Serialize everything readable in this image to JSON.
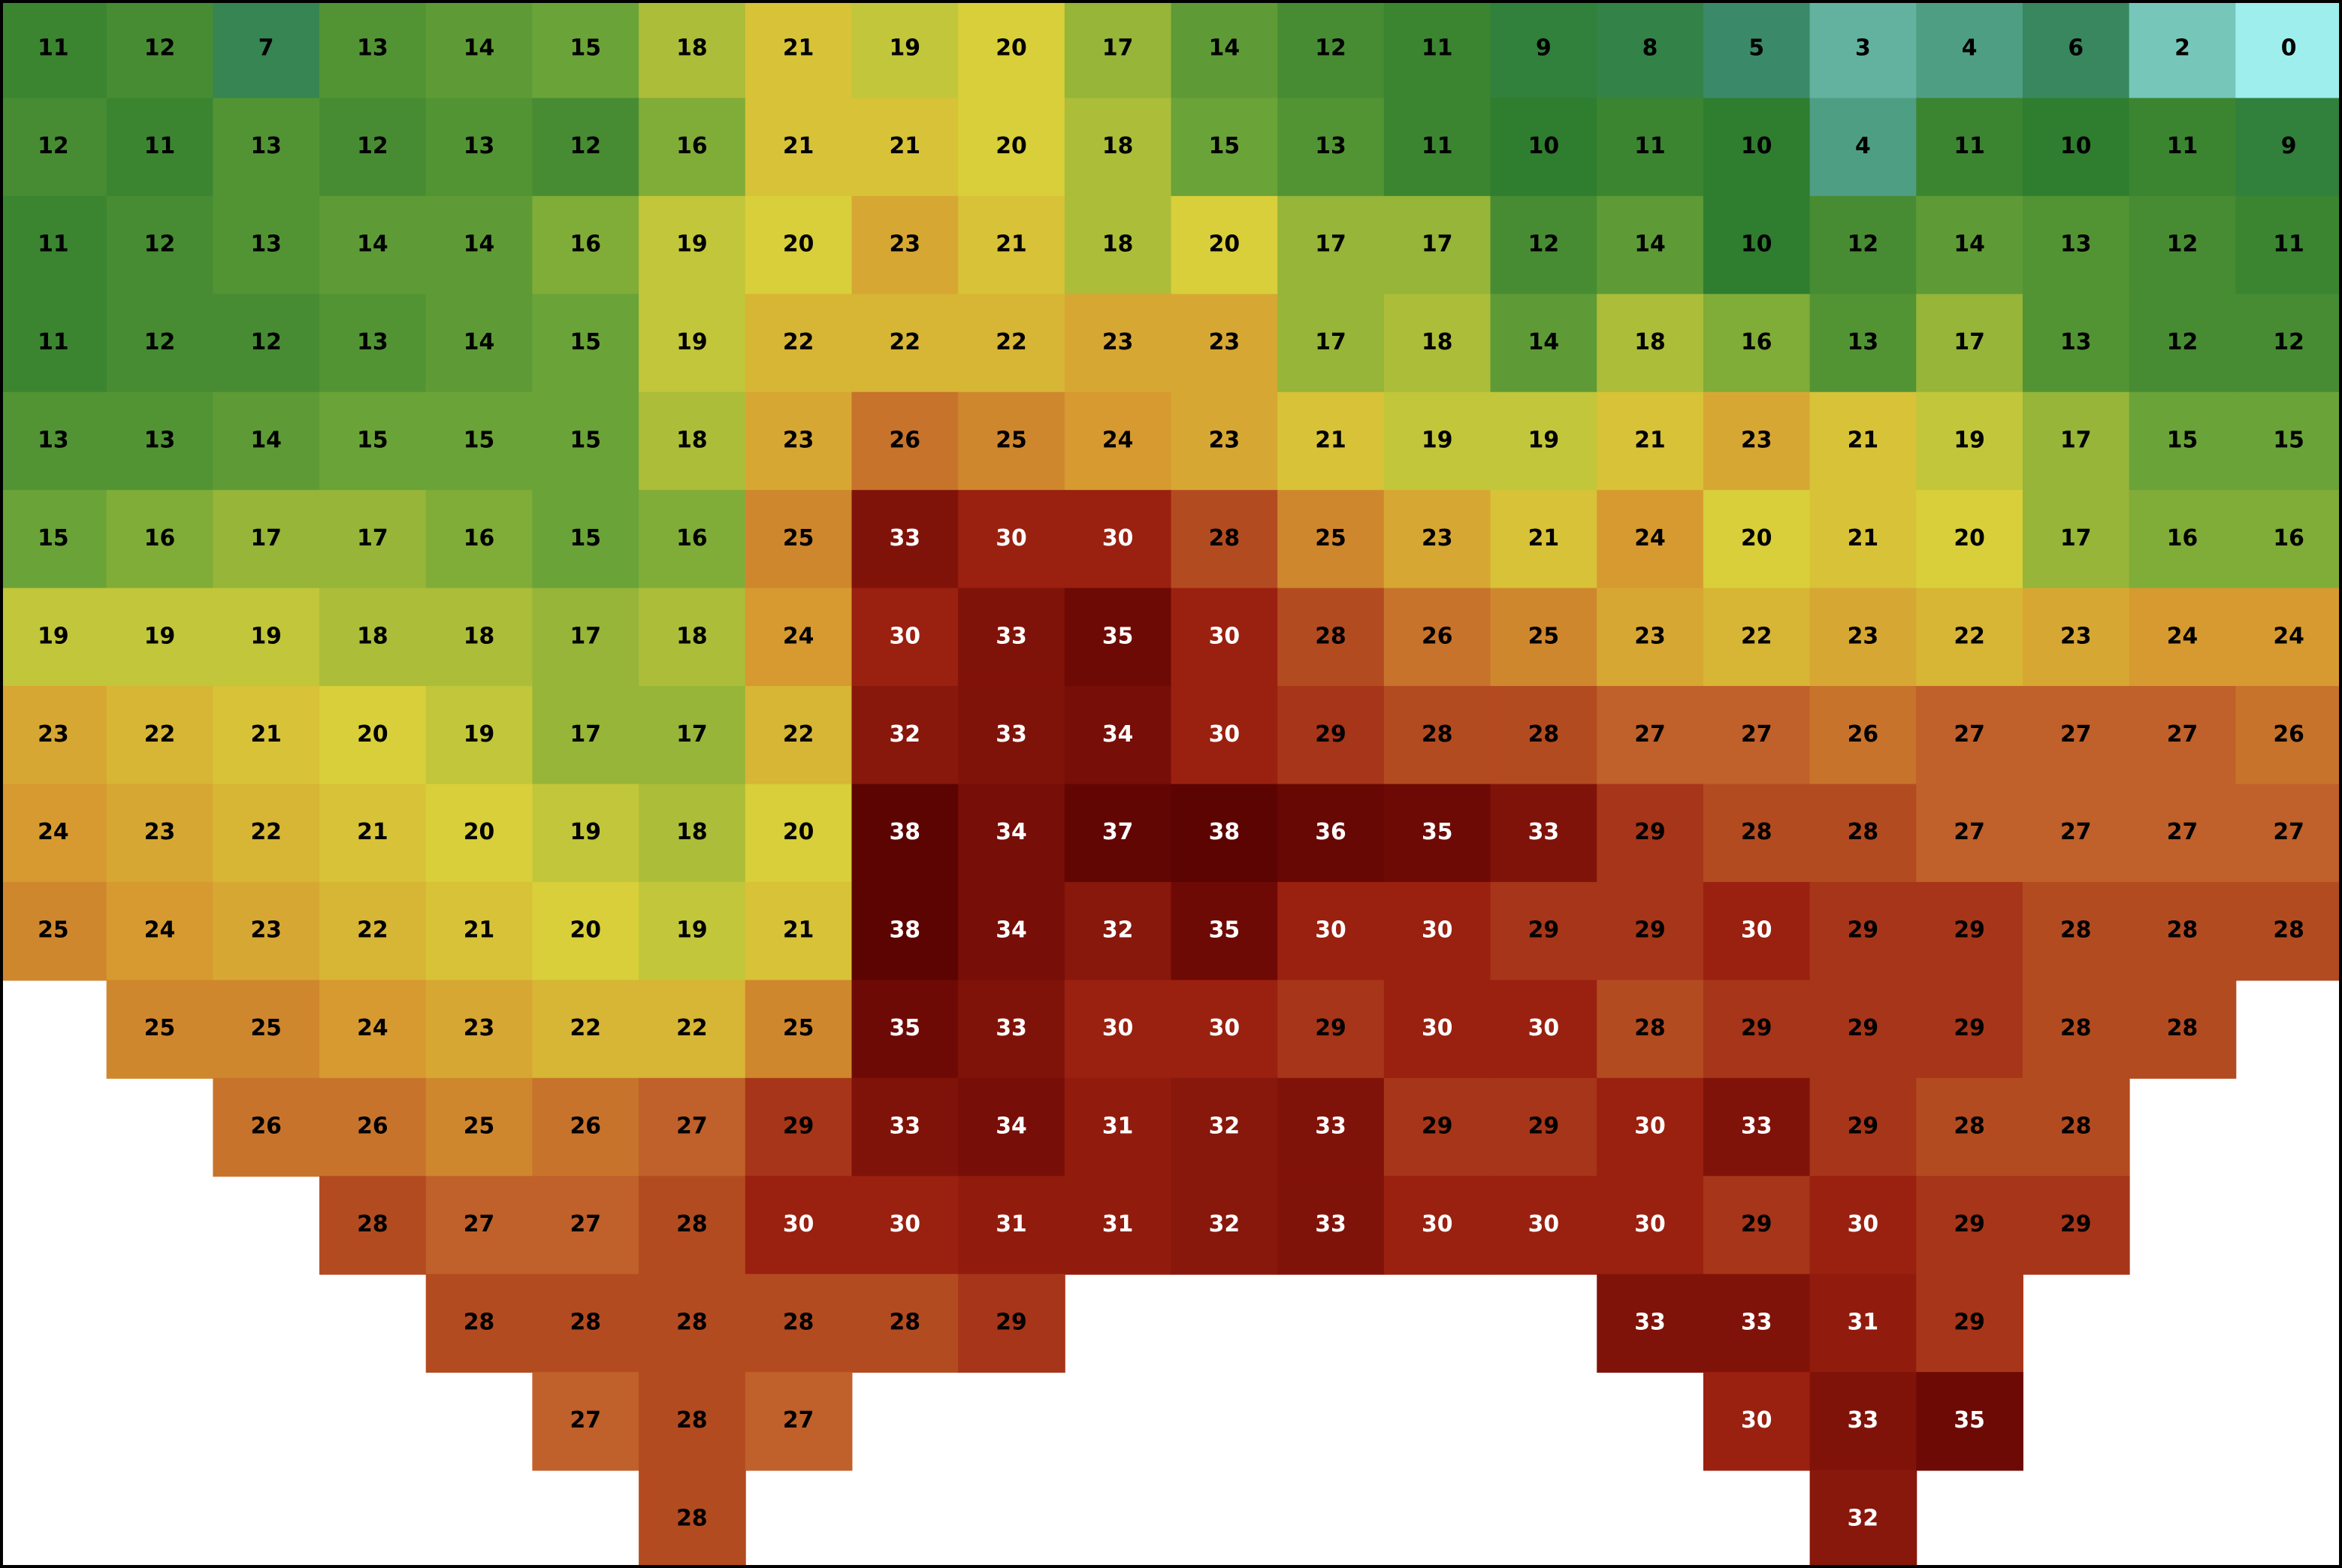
{
  "grid": {
    "rows": [
      [
        11,
        12,
        7,
        13,
        14,
        15,
        18,
        21,
        19,
        20,
        17,
        14,
        12,
        11,
        9,
        8,
        5,
        3,
        4,
        6,
        2,
        0
      ],
      [
        12,
        11,
        13,
        12,
        13,
        12,
        16,
        21,
        21,
        20,
        18,
        15,
        13,
        11,
        10,
        11,
        10,
        4,
        11,
        10,
        11,
        9
      ],
      [
        11,
        12,
        13,
        14,
        14,
        16,
        19,
        20,
        23,
        21,
        18,
        20,
        17,
        17,
        12,
        14,
        10,
        12,
        14,
        13,
        12,
        11
      ],
      [
        11,
        12,
        12,
        13,
        14,
        15,
        19,
        22,
        22,
        22,
        23,
        23,
        17,
        18,
        14,
        18,
        16,
        13,
        17,
        13,
        12,
        12
      ],
      [
        13,
        13,
        14,
        15,
        15,
        15,
        18,
        23,
        26,
        25,
        24,
        23,
        21,
        19,
        19,
        21,
        23,
        21,
        19,
        17,
        15,
        15
      ],
      [
        15,
        16,
        17,
        17,
        16,
        15,
        16,
        25,
        33,
        30,
        30,
        28,
        25,
        23,
        21,
        24,
        20,
        21,
        20,
        17,
        16,
        16
      ],
      [
        19,
        19,
        19,
        18,
        18,
        17,
        18,
        24,
        30,
        33,
        35,
        30,
        28,
        26,
        25,
        23,
        22,
        23,
        22,
        23,
        24,
        24
      ],
      [
        23,
        22,
        21,
        20,
        19,
        17,
        17,
        22,
        32,
        33,
        34,
        30,
        29,
        28,
        28,
        27,
        27,
        26,
        27,
        27,
        27,
        26
      ],
      [
        24,
        23,
        22,
        21,
        20,
        19,
        18,
        20,
        38,
        34,
        37,
        38,
        36,
        35,
        33,
        29,
        28,
        28,
        27,
        27,
        27,
        27
      ],
      [
        25,
        24,
        23,
        22,
        21,
        20,
        19,
        21,
        38,
        34,
        32,
        35,
        30,
        30,
        29,
        29,
        30,
        29,
        29,
        28,
        28,
        28
      ],
      [
        null,
        25,
        25,
        24,
        23,
        22,
        22,
        25,
        35,
        33,
        30,
        30,
        29,
        30,
        30,
        28,
        29,
        29,
        29,
        28,
        28,
        null
      ],
      [
        null,
        null,
        26,
        26,
        25,
        26,
        27,
        29,
        33,
        34,
        31,
        32,
        33,
        29,
        29,
        30,
        33,
        29,
        28,
        28,
        null,
        null
      ],
      [
        null,
        null,
        null,
        28,
        27,
        27,
        28,
        30,
        30,
        31,
        31,
        32,
        33,
        30,
        30,
        30,
        29,
        30,
        29,
        29,
        null,
        null
      ],
      [
        null,
        null,
        null,
        null,
        28,
        28,
        28,
        28,
        28,
        29,
        null,
        null,
        null,
        null,
        null,
        33,
        33,
        31,
        29,
        null,
        null,
        null
      ],
      [
        null,
        null,
        null,
        null,
        null,
        27,
        28,
        27,
        null,
        null,
        null,
        null,
        null,
        null,
        null,
        null,
        30,
        33,
        35,
        null,
        null,
        null
      ],
      [
        null,
        null,
        null,
        null,
        null,
        null,
        28,
        null,
        null,
        null,
        null,
        null,
        null,
        null,
        null,
        null,
        null,
        32,
        null,
        null,
        null,
        null
      ]
    ]
  }
}
